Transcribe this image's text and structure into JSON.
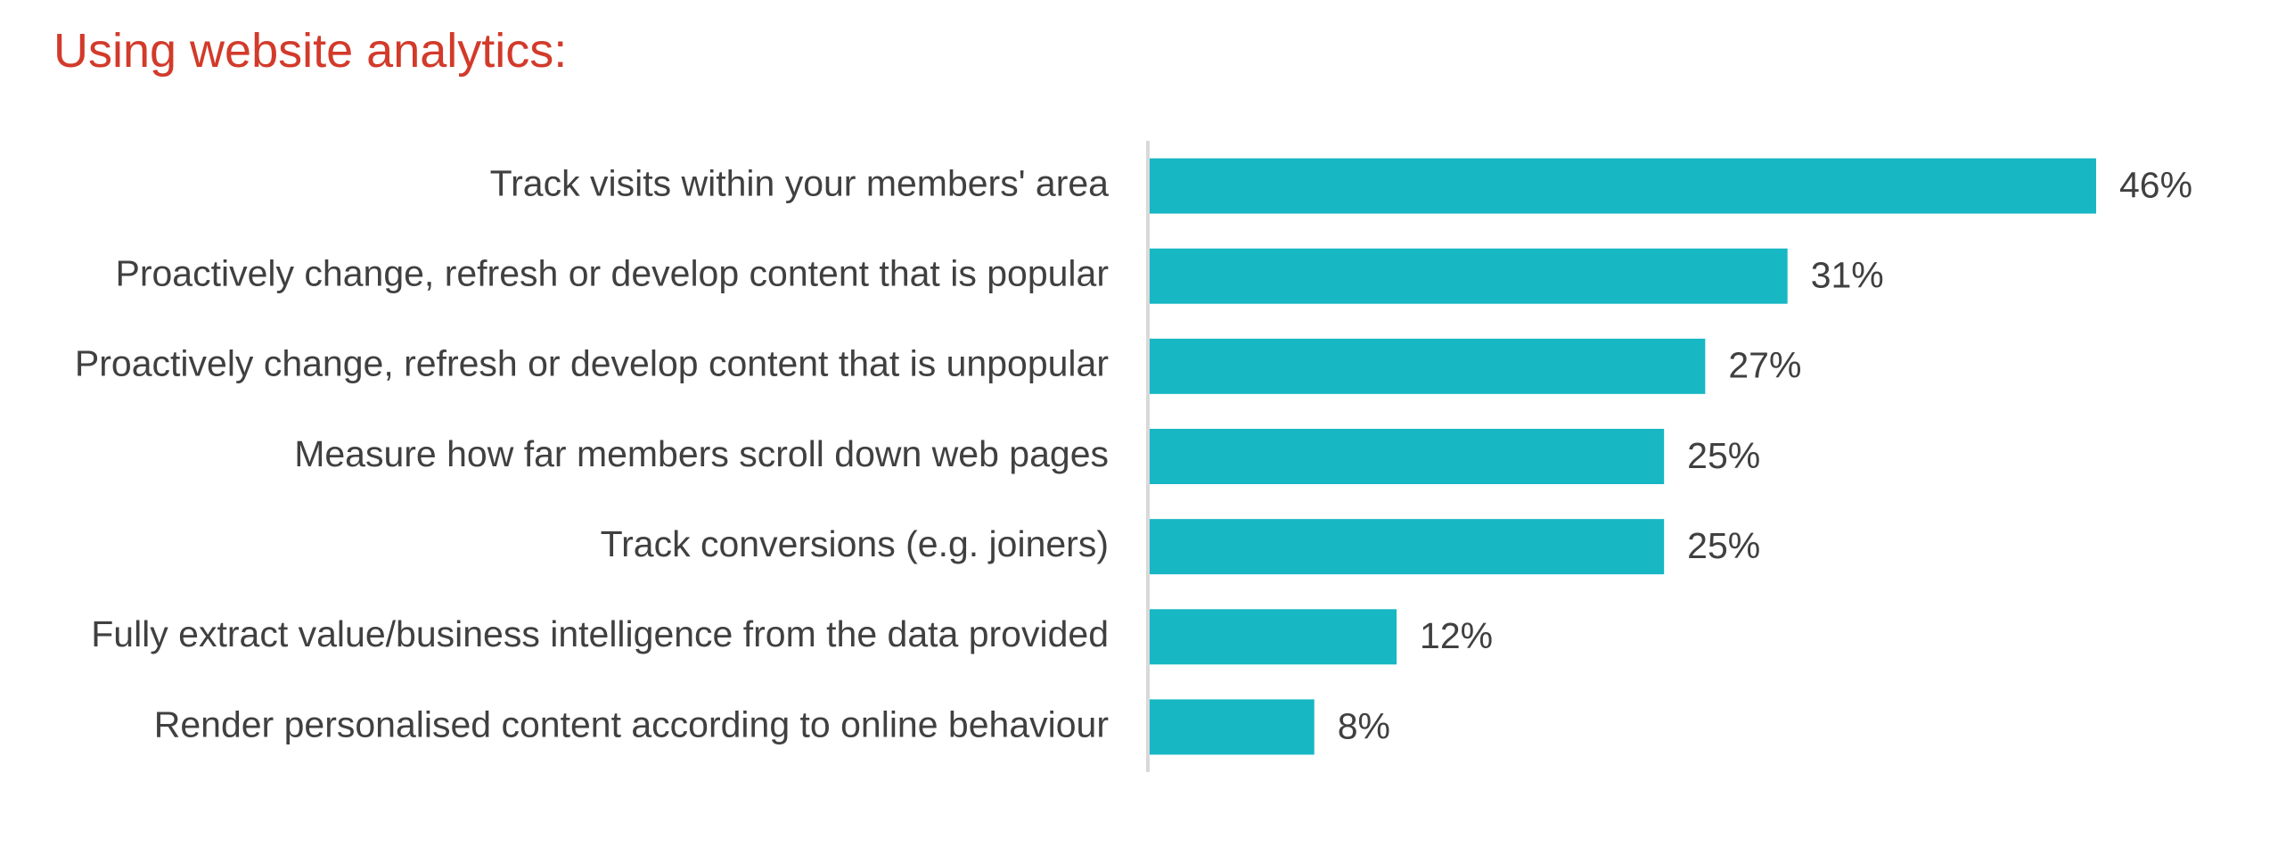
{
  "chart_data": {
    "type": "bar",
    "orientation": "horizontal",
    "title": "Using website analytics:",
    "categories": [
      "Track visits within your members' area",
      "Proactively change, refresh or develop content that is popular",
      "Proactively change, refresh or develop content that is unpopular",
      "Measure how far members scroll down web pages",
      "Track conversions (e.g. joiners)",
      "Fully extract value/business intelligence from the data provided",
      "Render personalised content according to online behaviour"
    ],
    "values": [
      46,
      31,
      27,
      25,
      25,
      12,
      8
    ],
    "value_labels": [
      "46%",
      "31%",
      "27%",
      "25%",
      "25%",
      "12%",
      "8%"
    ],
    "unit": "%",
    "xlim": [
      0,
      50
    ],
    "grid": false,
    "legend": "none",
    "colors": {
      "bar": "#17b7c4",
      "title": "#d23a2a",
      "text": "#404040",
      "axis": "#d9d9d9"
    }
  }
}
